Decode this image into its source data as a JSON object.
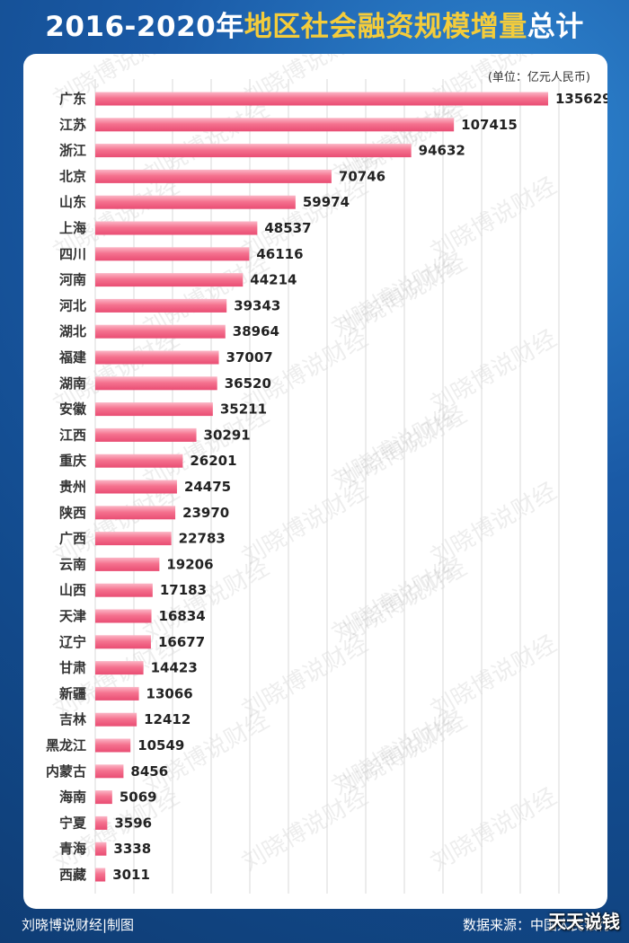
{
  "header": {
    "title_part1": "2016-2020年",
    "title_part2": "地区社会融资规模增量",
    "title_part3": "总计"
  },
  "unit_label": "(单位：亿元人民币)",
  "footer": {
    "credit": "刘晓博说财经|制图",
    "source": "数据来源：中国人民银行"
  },
  "watermark_text": "刘晓博说财经",
  "corner_logo": "天天说钱",
  "colors": {
    "bar": "#f5728f",
    "bar_light": "#fbb6c6",
    "bar_dark": "#e94d73",
    "grid": "#d9d9d9",
    "title_yellow": "#f4cc3b",
    "background": "#1a5aa6"
  },
  "chart_data": {
    "type": "bar",
    "orientation": "horizontal",
    "title": "2016-2020年地区社会融资规模增量总计",
    "unit": "(单位：亿元人民币)",
    "xlim": [
      0,
      140000
    ],
    "grid": true,
    "categories": [
      "广东",
      "江苏",
      "浙江",
      "北京",
      "山东",
      "上海",
      "四川",
      "河南",
      "河北",
      "湖北",
      "福建",
      "湖南",
      "安徽",
      "江西",
      "重庆",
      "贵州",
      "陕西",
      "广西",
      "云南",
      "山西",
      "天津",
      "辽宁",
      "甘肃",
      "新疆",
      "吉林",
      "黑龙江",
      "内蒙古",
      "海南",
      "宁夏",
      "青海",
      "西藏"
    ],
    "values": [
      135629,
      107415,
      94632,
      70746,
      59974,
      48537,
      46116,
      44214,
      39343,
      38964,
      37007,
      36520,
      35211,
      30291,
      26201,
      24475,
      23970,
      22783,
      19206,
      17183,
      16834,
      16677,
      14423,
      13066,
      12412,
      10549,
      8456,
      5069,
      3596,
      3338,
      3011
    ]
  }
}
